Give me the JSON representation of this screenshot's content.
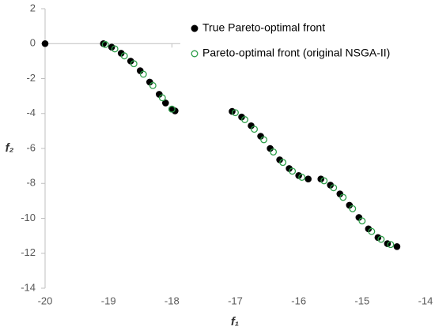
{
  "chart_data": {
    "type": "scatter",
    "x_label": "f₁",
    "y_label": "f₂",
    "xlim": [
      -20,
      -14
    ],
    "ylim": [
      -14,
      2
    ],
    "xticks": [
      -20,
      -19,
      -18,
      -17,
      -16,
      -15,
      -14
    ],
    "yticks": [
      -14,
      -12,
      -10,
      -8,
      -6,
      -4,
      -2,
      0,
      2
    ],
    "legend_position": "upper right",
    "series": [
      {
        "name": "True Pareto-optimal front",
        "color": "#000000",
        "marker": "filled",
        "x": [
          -20,
          -19.08,
          -18.95,
          -18.8,
          -18.65,
          -18.5,
          -18.35,
          -18.2,
          -18.1,
          -18.0,
          -17.95,
          -17.05,
          -16.9,
          -16.75,
          -16.6,
          -16.45,
          -16.3,
          -16.15,
          -16.0,
          -15.85,
          -15.65,
          -15.5,
          -15.35,
          -15.2,
          -15.05,
          -14.9,
          -14.75,
          -14.6,
          -14.45
        ],
        "values": [
          0,
          0,
          -0.2,
          -0.55,
          -1.0,
          -1.55,
          -2.2,
          -2.9,
          -3.4,
          -3.75,
          -3.85,
          -3.88,
          -4.2,
          -4.7,
          -5.3,
          -6.0,
          -6.65,
          -7.15,
          -7.55,
          -7.75,
          -7.75,
          -8.1,
          -8.6,
          -9.25,
          -9.95,
          -10.6,
          -11.1,
          -11.45,
          -11.62
        ]
      },
      {
        "name": "Pareto-optimal front (original NSGA-II)",
        "color": "#2e9e4a",
        "marker": "hollow",
        "x": [
          -19.05,
          -18.9,
          -18.75,
          -18.6,
          -18.45,
          -18.3,
          -18.15,
          -18.0,
          -17.0,
          -16.85,
          -16.7,
          -16.55,
          -16.4,
          -16.25,
          -16.1,
          -15.95,
          -15.6,
          -15.45,
          -15.3,
          -15.15,
          -15.0,
          -14.85,
          -14.7,
          -14.55
        ],
        "values": [
          -0.05,
          -0.3,
          -0.7,
          -1.15,
          -1.75,
          -2.4,
          -3.1,
          -3.75,
          -3.95,
          -4.35,
          -4.9,
          -5.5,
          -6.2,
          -6.8,
          -7.3,
          -7.65,
          -7.85,
          -8.25,
          -8.8,
          -9.45,
          -10.15,
          -10.75,
          -11.2,
          -11.5
        ]
      }
    ]
  }
}
